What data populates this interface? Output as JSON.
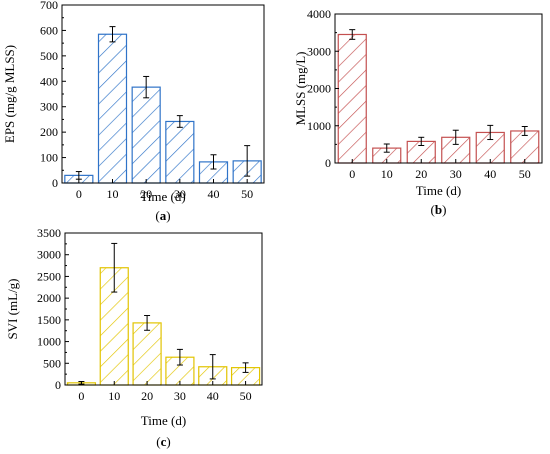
{
  "chart_data": [
    {
      "type": "bar",
      "panel_label": "(a)",
      "xlabel": "Time (d)",
      "ylabel": "EPS (mg/g MLSS)",
      "categories": [
        "0",
        "10",
        "20",
        "30",
        "40",
        "50"
      ],
      "values": [
        30,
        585,
        377,
        242,
        83,
        87
      ],
      "errors": [
        15,
        30,
        42,
        23,
        28,
        60
      ],
      "ylim": [
        0,
        700
      ],
      "yticks": [
        0,
        100,
        200,
        300,
        400,
        500,
        600,
        700
      ],
      "color": "#2f73c8",
      "grid": false
    },
    {
      "type": "bar",
      "panel_label": "(b)",
      "xlabel": "Time (d)",
      "ylabel": "MLSS (mg/L)",
      "categories": [
        "0",
        "10",
        "20",
        "30",
        "40",
        "50"
      ],
      "values": [
        3450,
        400,
        580,
        690,
        820,
        860
      ],
      "errors": [
        130,
        110,
        110,
        190,
        190,
        120
      ],
      "ylim": [
        0,
        4000
      ],
      "yticks": [
        0,
        1000,
        2000,
        3000,
        4000
      ],
      "color": "#c45050",
      "grid": false
    },
    {
      "type": "bar",
      "panel_label": "(c)",
      "xlabel": "Time (d)",
      "ylabel": "SVI (mL/g)",
      "categories": [
        "0",
        "10",
        "20",
        "30",
        "40",
        "50"
      ],
      "values": [
        50,
        2700,
        1430,
        640,
        420,
        400
      ],
      "errors": [
        30,
        560,
        170,
        180,
        280,
        110
      ],
      "ylim": [
        0,
        3500
      ],
      "yticks": [
        0,
        500,
        1000,
        1500,
        2000,
        2500,
        3000,
        3500
      ],
      "color": "#e2c400",
      "grid": false
    }
  ]
}
